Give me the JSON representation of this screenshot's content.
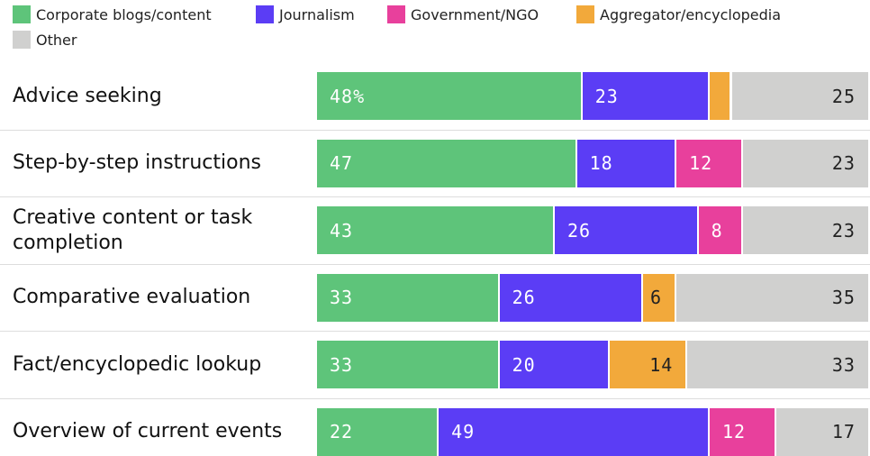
{
  "chart_data": {
    "type": "stacked-bar-horizontal",
    "categories": [
      "Advice seeking",
      "Step-by-step instructions",
      "Creative content or task completion",
      "Comparative evaluation",
      "Fact/encyclopedic lookup",
      "Overview of current events"
    ],
    "xlim": [
      0,
      100
    ],
    "legend": "top-left",
    "series": [
      {
        "name": "Corporate blogs/content",
        "color": "#5ec47a",
        "values": [
          48,
          47,
          43,
          33,
          33,
          22
        ],
        "value_labels": [
          "48%",
          null,
          null,
          null,
          null,
          null
        ]
      },
      {
        "name": "Journalism",
        "color": "#5b3df5",
        "values": [
          23,
          18,
          26,
          26,
          20,
          49
        ]
      },
      {
        "name": "Government/NGO",
        "color": "#e8409c",
        "values": [
          0,
          12,
          8,
          0,
          0,
          12
        ]
      },
      {
        "name": "Aggregator/encyclopedia",
        "color": "#f2a93b",
        "values": [
          4,
          0,
          0,
          6,
          14,
          0
        ]
      },
      {
        "name": "Other",
        "color": "#d0d0cf",
        "values": [
          25,
          23,
          23,
          35,
          33,
          17
        ]
      }
    ]
  }
}
